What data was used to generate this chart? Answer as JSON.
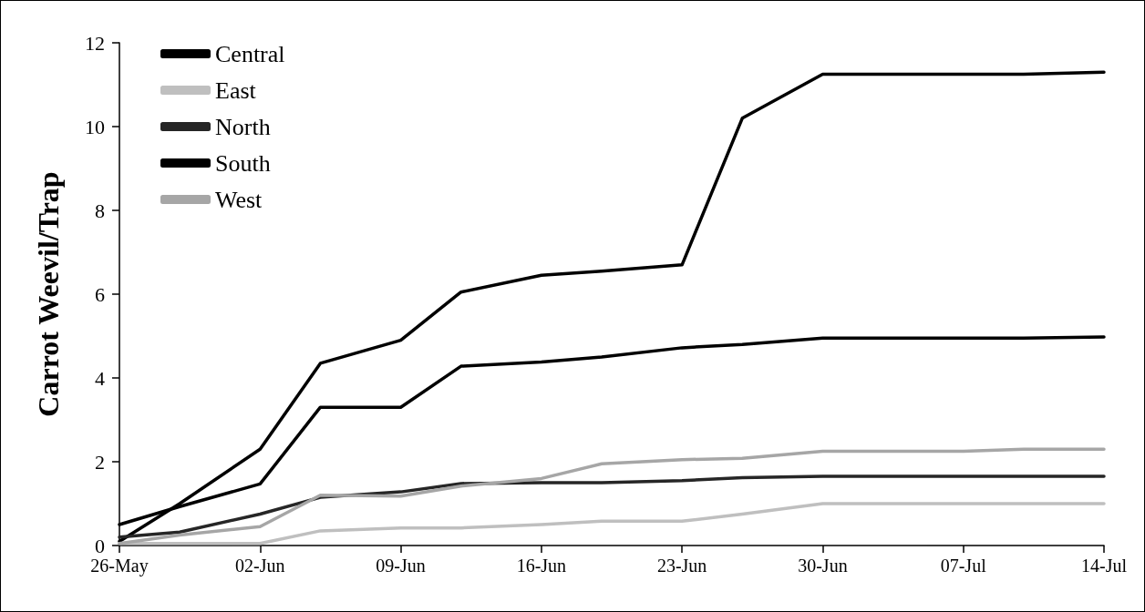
{
  "chart_data": {
    "type": "line",
    "ylabel": "Carrot Weevil/Trap",
    "x": [
      "--05-26",
      "--05-29",
      "--06-02",
      "--06-05",
      "--06-09",
      "--06-12",
      "--06-16",
      "--06-19",
      "--06-23",
      "--06-26",
      "--06-30",
      "--07-03",
      "--07-07",
      "--07-10",
      "--07-14"
    ],
    "series": [
      {
        "name": "Central",
        "color": "#000000",
        "values": [
          0.1,
          1.0,
          2.3,
          4.35,
          4.9,
          6.05,
          6.45,
          6.55,
          6.7,
          10.2,
          11.25,
          11.25,
          11.25,
          11.25,
          11.3
        ]
      },
      {
        "name": "East",
        "color": "#bfbfbf",
        "values": [
          0.05,
          0.05,
          0.05,
          0.35,
          0.42,
          0.42,
          0.5,
          0.58,
          0.58,
          0.75,
          1.0,
          1.0,
          1.0,
          1.0,
          1.0
        ]
      },
      {
        "name": "North",
        "color": "#262626",
        "values": [
          0.2,
          0.32,
          0.75,
          1.15,
          1.28,
          1.48,
          1.5,
          1.5,
          1.55,
          1.62,
          1.65,
          1.65,
          1.65,
          1.65,
          1.65
        ]
      },
      {
        "name": "South",
        "color": "#000000",
        "values": [
          0.5,
          0.93,
          1.47,
          3.3,
          3.3,
          4.28,
          4.38,
          4.5,
          4.72,
          4.8,
          4.95,
          4.95,
          4.95,
          4.95,
          4.98
        ]
      },
      {
        "name": "West",
        "color": "#a6a6a6",
        "values": [
          0.05,
          0.25,
          0.45,
          1.2,
          1.18,
          1.42,
          1.6,
          1.95,
          2.05,
          2.08,
          2.25,
          2.25,
          2.25,
          2.3,
          2.3
        ]
      }
    ],
    "xlim": [
      "--05-26",
      "--07-14"
    ],
    "xticks": [
      {
        "value": "--05-26",
        "label": "26-May"
      },
      {
        "value": "--06-02",
        "label": "02-Jun"
      },
      {
        "value": "--06-09",
        "label": "09-Jun"
      },
      {
        "value": "--06-16",
        "label": "16-Jun"
      },
      {
        "value": "--06-23",
        "label": "23-Jun"
      },
      {
        "value": "--06-30",
        "label": "30-Jun"
      },
      {
        "value": "--07-07",
        "label": "07-Jul"
      },
      {
        "value": "--07-14",
        "label": "14-Jul"
      }
    ],
    "ylim": [
      0,
      12
    ],
    "yticks": [
      0,
      2,
      4,
      6,
      8,
      10,
      12
    ],
    "legend": "top left",
    "grid": false,
    "marker": "none",
    "line_style": "solid"
  }
}
